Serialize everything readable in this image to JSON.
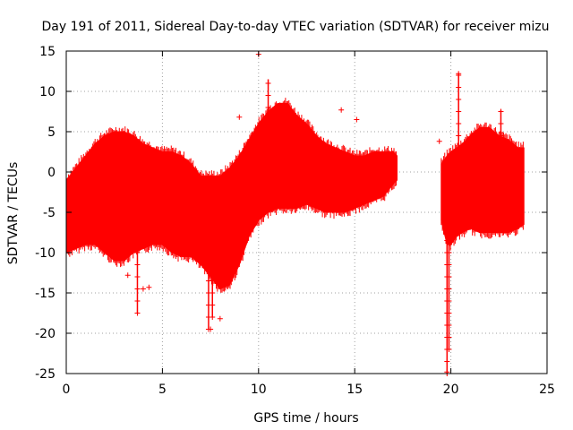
{
  "chart_data": {
    "type": "scatter",
    "title": "Day 191 of 2011, Sidereal Day-to-day VTEC variation (SDTVAR) for receiver mizu",
    "xlabel": "GPS time / hours",
    "ylabel": "SDTVAR / TECUs",
    "xlim": [
      0,
      25
    ],
    "ylim": [
      -25,
      15
    ],
    "grid": true,
    "x_ticks": [
      "0",
      "5",
      "10",
      "15",
      "20",
      "25"
    ],
    "y_ticks": [
      "15",
      "10",
      "5",
      "0",
      "-5",
      "-10",
      "-15",
      "-20",
      "-25"
    ],
    "series": [
      {
        "name": "SDTVAR",
        "color": "#ff0000",
        "marker": "plus",
        "band": {
          "x": [
            0.0,
            0.5,
            1.0,
            1.5,
            2.0,
            2.5,
            3.0,
            3.5,
            4.0,
            4.5,
            5.0,
            5.5,
            6.0,
            6.5,
            7.0,
            7.5,
            8.0,
            8.5,
            9.0,
            9.5,
            10.0,
            10.5,
            11.0,
            11.5,
            12.0,
            12.5,
            13.0,
            13.5,
            14.0,
            14.5,
            15.0,
            15.5,
            16.0,
            16.5,
            17.0,
            17.2
          ],
          "upper": [
            -1.0,
            0.5,
            2.0,
            3.5,
            4.5,
            5.0,
            5.0,
            4.5,
            3.5,
            3.0,
            2.5,
            2.5,
            2.0,
            1.0,
            -0.5,
            -0.5,
            -0.5,
            0.5,
            2.0,
            4.0,
            6.0,
            7.5,
            8.5,
            8.5,
            7.0,
            6.0,
            4.5,
            3.5,
            3.0,
            2.5,
            2.0,
            2.0,
            2.5,
            2.5,
            2.5,
            2.0
          ],
          "lower": [
            -10.0,
            -9.5,
            -9.0,
            -9.0,
            -10.0,
            -11.0,
            -11.0,
            -10.0,
            -9.5,
            -9.0,
            -9.0,
            -10.0,
            -10.5,
            -10.5,
            -11.5,
            -13.0,
            -14.5,
            -14.0,
            -11.5,
            -8.0,
            -6.0,
            -5.0,
            -4.5,
            -4.5,
            -4.5,
            -4.0,
            -4.5,
            -5.0,
            -5.0,
            -5.0,
            -4.5,
            -4.0,
            -3.5,
            -3.0,
            -1.5,
            -1.0
          ]
        },
        "band2": {
          "x": [
            19.5,
            19.8,
            20.0,
            20.3,
            20.6,
            21.0,
            21.5,
            22.0,
            22.5,
            23.0,
            23.5,
            23.8
          ],
          "upper": [
            1.0,
            2.0,
            2.5,
            3.0,
            3.5,
            4.5,
            5.5,
            5.5,
            4.5,
            4.0,
            3.0,
            3.0
          ],
          "lower": [
            -6.0,
            -9.0,
            -9.0,
            -8.0,
            -7.5,
            -7.0,
            -7.5,
            -7.5,
            -7.5,
            -7.5,
            -7.0,
            -6.5
          ]
        },
        "spikes": [
          {
            "x": 3.7,
            "y_min": -9.5,
            "y_max": -17.5
          },
          {
            "x": 7.4,
            "y_min": -8.0,
            "y_max": -19.5
          },
          {
            "x": 7.6,
            "y_min": -8.0,
            "y_max": -18.0
          },
          {
            "x": 19.8,
            "y_min": -8.0,
            "y_max": -25.0
          },
          {
            "x": 19.9,
            "y_min": -8.0,
            "y_max": -22.0
          },
          {
            "x": 20.4,
            "y_min": 3.0,
            "y_max": 12.2
          },
          {
            "x": 10.5,
            "y_min": 5.0,
            "y_max": 11.5
          },
          {
            "x": 22.6,
            "y_min": 3.0,
            "y_max": 7.7
          }
        ],
        "outliers": [
          {
            "x": 3.7,
            "y": -17.5
          },
          {
            "x": 4.0,
            "y": -14.5
          },
          {
            "x": 4.3,
            "y": -14.3
          },
          {
            "x": 8.0,
            "y": -18.2
          },
          {
            "x": 10.0,
            "y": 14.6
          },
          {
            "x": 14.3,
            "y": 7.7
          },
          {
            "x": 15.1,
            "y": 6.5
          },
          {
            "x": 19.4,
            "y": 3.8
          },
          {
            "x": 20.4,
            "y": 12.2
          },
          {
            "x": 19.8,
            "y": -24.8
          },
          {
            "x": 7.5,
            "y": -19.5
          },
          {
            "x": 9.0,
            "y": 6.8
          },
          {
            "x": 3.2,
            "y": -12.8
          }
        ]
      }
    ]
  }
}
